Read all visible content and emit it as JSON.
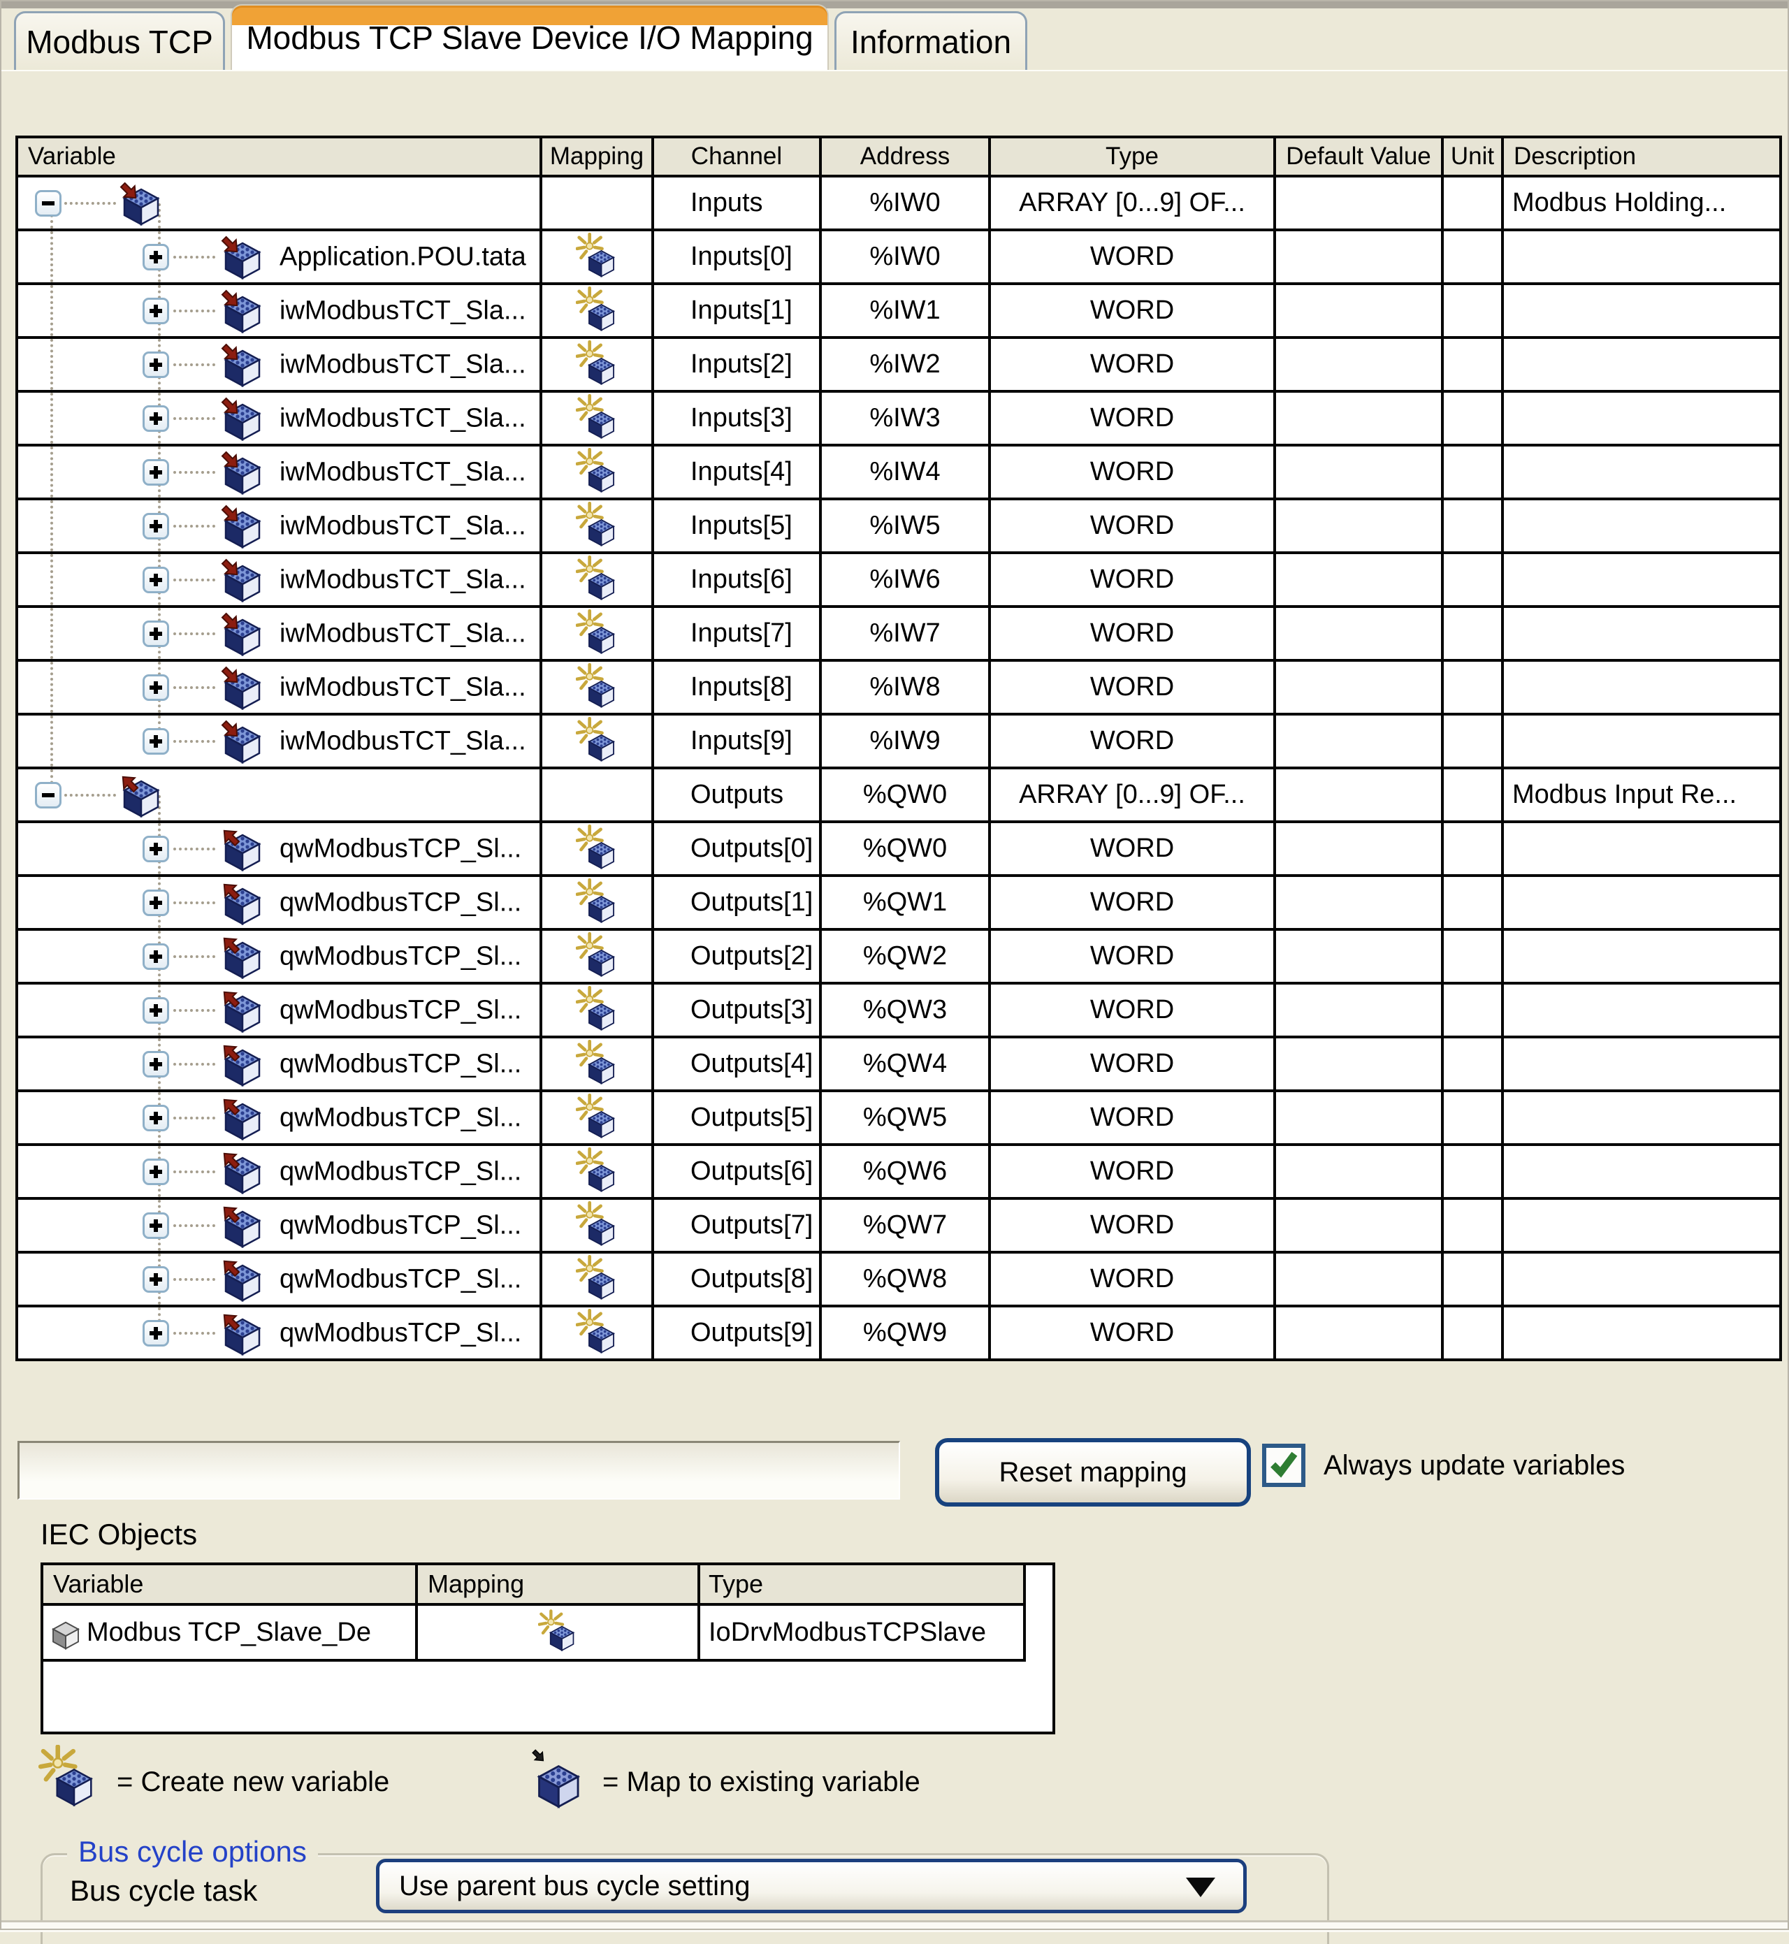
{
  "tabs": [
    {
      "label": "Modbus TCP",
      "active": false
    },
    {
      "label": "Modbus TCP Slave Device I/O Mapping",
      "active": true
    },
    {
      "label": "Information",
      "active": false
    }
  ],
  "channels": {
    "section_label": "Channels",
    "columns": [
      "Variable",
      "Mapping",
      "Channel",
      "Address",
      "Type",
      "Default Value",
      "Unit",
      "Description"
    ],
    "rows": [
      {
        "kind": "group",
        "dir": "input",
        "variable": "",
        "channel": "Inputs",
        "address": "%IW0",
        "type": "ARRAY [0...9] OF...",
        "default": "",
        "unit": "",
        "description": "Modbus Holding..."
      },
      {
        "kind": "item",
        "dir": "input",
        "variable": "Application.POU.tata",
        "channel": "Inputs[0]",
        "address": "%IW0",
        "type": "WORD",
        "default": "",
        "unit": "",
        "description": ""
      },
      {
        "kind": "item",
        "dir": "input",
        "variable": "iwModbusTCT_Sla...",
        "channel": "Inputs[1]",
        "address": "%IW1",
        "type": "WORD",
        "default": "",
        "unit": "",
        "description": ""
      },
      {
        "kind": "item",
        "dir": "input",
        "variable": "iwModbusTCT_Sla...",
        "channel": "Inputs[2]",
        "address": "%IW2",
        "type": "WORD",
        "default": "",
        "unit": "",
        "description": ""
      },
      {
        "kind": "item",
        "dir": "input",
        "variable": "iwModbusTCT_Sla...",
        "channel": "Inputs[3]",
        "address": "%IW3",
        "type": "WORD",
        "default": "",
        "unit": "",
        "description": ""
      },
      {
        "kind": "item",
        "dir": "input",
        "variable": "iwModbusTCT_Sla...",
        "channel": "Inputs[4]",
        "address": "%IW4",
        "type": "WORD",
        "default": "",
        "unit": "",
        "description": ""
      },
      {
        "kind": "item",
        "dir": "input",
        "variable": "iwModbusTCT_Sla...",
        "channel": "Inputs[5]",
        "address": "%IW5",
        "type": "WORD",
        "default": "",
        "unit": "",
        "description": ""
      },
      {
        "kind": "item",
        "dir": "input",
        "variable": "iwModbusTCT_Sla...",
        "channel": "Inputs[6]",
        "address": "%IW6",
        "type": "WORD",
        "default": "",
        "unit": "",
        "description": ""
      },
      {
        "kind": "item",
        "dir": "input",
        "variable": "iwModbusTCT_Sla...",
        "channel": "Inputs[7]",
        "address": "%IW7",
        "type": "WORD",
        "default": "",
        "unit": "",
        "description": ""
      },
      {
        "kind": "item",
        "dir": "input",
        "variable": "iwModbusTCT_Sla...",
        "channel": "Inputs[8]",
        "address": "%IW8",
        "type": "WORD",
        "default": "",
        "unit": "",
        "description": ""
      },
      {
        "kind": "item",
        "dir": "input",
        "variable": "iwModbusTCT_Sla...",
        "channel": "Inputs[9]",
        "address": "%IW9",
        "type": "WORD",
        "default": "",
        "unit": "",
        "description": ""
      },
      {
        "kind": "group",
        "dir": "output",
        "variable": "",
        "channel": "Outputs",
        "address": "%QW0",
        "type": "ARRAY [0...9] OF...",
        "default": "",
        "unit": "",
        "description": "Modbus Input Re..."
      },
      {
        "kind": "item",
        "dir": "output",
        "variable": "qwModbusTCP_Sl...",
        "channel": "Outputs[0]",
        "address": "%QW0",
        "type": "WORD",
        "default": "",
        "unit": "",
        "description": ""
      },
      {
        "kind": "item",
        "dir": "output",
        "variable": "qwModbusTCP_Sl...",
        "channel": "Outputs[1]",
        "address": "%QW1",
        "type": "WORD",
        "default": "",
        "unit": "",
        "description": ""
      },
      {
        "kind": "item",
        "dir": "output",
        "variable": "qwModbusTCP_Sl...",
        "channel": "Outputs[2]",
        "address": "%QW2",
        "type": "WORD",
        "default": "",
        "unit": "",
        "description": ""
      },
      {
        "kind": "item",
        "dir": "output",
        "variable": "qwModbusTCP_Sl...",
        "channel": "Outputs[3]",
        "address": "%QW3",
        "type": "WORD",
        "default": "",
        "unit": "",
        "description": ""
      },
      {
        "kind": "item",
        "dir": "output",
        "variable": "qwModbusTCP_Sl...",
        "channel": "Outputs[4]",
        "address": "%QW4",
        "type": "WORD",
        "default": "",
        "unit": "",
        "description": ""
      },
      {
        "kind": "item",
        "dir": "output",
        "variable": "qwModbusTCP_Sl...",
        "channel": "Outputs[5]",
        "address": "%QW5",
        "type": "WORD",
        "default": "",
        "unit": "",
        "description": ""
      },
      {
        "kind": "item",
        "dir": "output",
        "variable": "qwModbusTCP_Sl...",
        "channel": "Outputs[6]",
        "address": "%QW6",
        "type": "WORD",
        "default": "",
        "unit": "",
        "description": ""
      },
      {
        "kind": "item",
        "dir": "output",
        "variable": "qwModbusTCP_Sl...",
        "channel": "Outputs[7]",
        "address": "%QW7",
        "type": "WORD",
        "default": "",
        "unit": "",
        "description": ""
      },
      {
        "kind": "item",
        "dir": "output",
        "variable": "qwModbusTCP_Sl...",
        "channel": "Outputs[8]",
        "address": "%QW8",
        "type": "WORD",
        "default": "",
        "unit": "",
        "description": ""
      },
      {
        "kind": "item",
        "dir": "output",
        "variable": "qwModbusTCP_Sl...",
        "channel": "Outputs[9]",
        "address": "%QW9",
        "type": "WORD",
        "default": "",
        "unit": "",
        "description": ""
      }
    ]
  },
  "footer": {
    "reset_button": "Reset mapping",
    "always_update_label": "Always update variables",
    "always_update_checked": true
  },
  "iec_objects": {
    "section_label": "IEC Objects",
    "columns": [
      "Variable",
      "Mapping",
      "Type"
    ],
    "rows": [
      {
        "variable": "Modbus TCP_Slave_De",
        "type": "IoDrvModbusTCPSlave"
      }
    ]
  },
  "legend": [
    {
      "icon": "create-new-variable-icon",
      "label": "= Create new variable"
    },
    {
      "icon": "map-existing-variable-icon",
      "label": "= Map to existing variable"
    }
  ],
  "bus_cycle": {
    "group_label": "Bus cycle options",
    "task_label": "Bus cycle task",
    "selected_option": "Use parent bus cycle setting"
  },
  "colors": {
    "active_tab_accent": "#f0a236",
    "background": "#ece9d8",
    "check_green": "#2e7d32",
    "control_border_blue": "#17427e",
    "group_label_blue": "#2442c8"
  }
}
